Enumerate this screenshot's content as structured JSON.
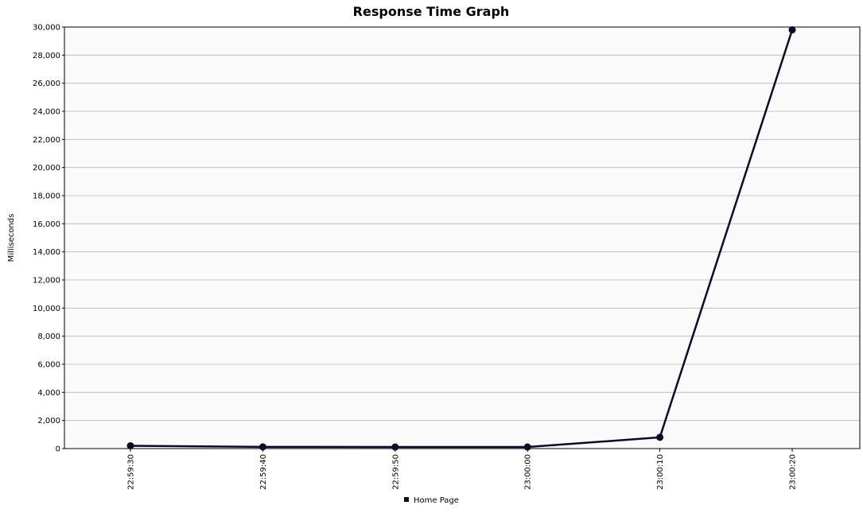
{
  "chart_data": {
    "type": "line",
    "title": "Response Time Graph",
    "xlabel": "",
    "ylabel": "Milliseconds",
    "categories": [
      "22:59:30",
      "22:59:40",
      "22:59:50",
      "23:00:00",
      "23:00:10",
      "23:00:20"
    ],
    "series": [
      {
        "name": "Home Page",
        "values": [
          200,
          120,
          110,
          110,
          800,
          29800
        ],
        "color": "#0a0a2a"
      }
    ],
    "ylim": [
      0,
      30000
    ],
    "yticks": [
      "0",
      "2,000",
      "4,000",
      "6,000",
      "8,000",
      "10,000",
      "12,000",
      "14,000",
      "16,000",
      "18,000",
      "20,000",
      "22,000",
      "24,000",
      "26,000",
      "28,000",
      "30,000"
    ],
    "grid": true,
    "legend_position": "bottom",
    "plot_background": "#fafafa",
    "grid_color": "#b4b4b4"
  }
}
